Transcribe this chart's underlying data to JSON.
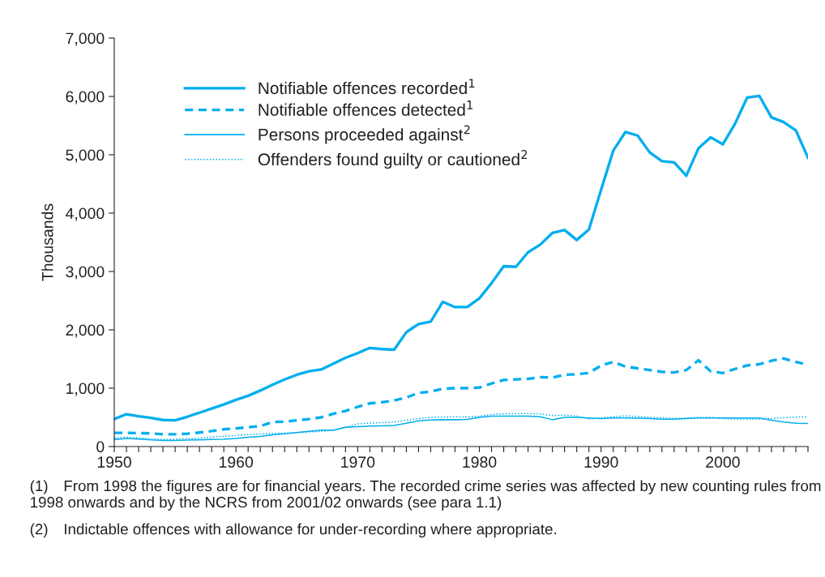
{
  "chart_data": {
    "type": "line",
    "ylabel": "Thousands",
    "x": [
      1950,
      1951,
      1952,
      1953,
      1954,
      1955,
      1956,
      1957,
      1958,
      1959,
      1960,
      1961,
      1962,
      1963,
      1964,
      1965,
      1966,
      1967,
      1968,
      1969,
      1970,
      1971,
      1972,
      1973,
      1974,
      1975,
      1976,
      1977,
      1978,
      1979,
      1980,
      1981,
      1982,
      1983,
      1984,
      1985,
      1986,
      1987,
      1988,
      1989,
      1990,
      1991,
      1992,
      1993,
      1994,
      1995,
      1996,
      1997,
      1998,
      1999,
      2000,
      2001,
      2002,
      2003,
      2004,
      2005,
      2006,
      2007
    ],
    "series": [
      {
        "name": "Notifiable offences recorded$^{1}$",
        "color": "#00aeef",
        "line_style": "solid",
        "values": [
          470,
          555,
          520,
          490,
          455,
          450,
          510,
          580,
          650,
          720,
          800,
          870,
          960,
          1060,
          1150,
          1230,
          1290,
          1320,
          1420,
          1520,
          1600,
          1690,
          1670,
          1660,
          1960,
          2100,
          2140,
          2480,
          2390,
          2390,
          2540,
          2800,
          3090,
          3080,
          3330,
          3460,
          3660,
          3710,
          3540,
          3720,
          4400,
          5070,
          5390,
          5330,
          5040,
          4890,
          4870,
          4640,
          5110,
          5300,
          5180,
          5530,
          5980,
          6010,
          5640,
          5560,
          5420,
          4950
        ]
      },
      {
        "name": "Notifiable offences detected$^{1}$",
        "color": "#00aeef",
        "line_style": "dashed",
        "values": [
          235,
          235,
          230,
          225,
          210,
          210,
          220,
          240,
          265,
          295,
          310,
          330,
          350,
          420,
          425,
          450,
          470,
          500,
          560,
          610,
          680,
          740,
          760,
          790,
          840,
          920,
          940,
          990,
          1000,
          1000,
          1010,
          1080,
          1140,
          1150,
          1160,
          1190,
          1180,
          1230,
          1240,
          1260,
          1390,
          1450,
          1370,
          1340,
          1310,
          1280,
          1270,
          1310,
          1480,
          1290,
          1260,
          1330,
          1390,
          1410,
          1470,
          1510,
          1450,
          1400
        ]
      },
      {
        "name": "Persons proceeded against$^{2}$",
        "color": "#00aeef",
        "line_style": "solid",
        "values": [
          120,
          140,
          130,
          115,
          105,
          105,
          110,
          115,
          120,
          125,
          140,
          160,
          175,
          200,
          220,
          240,
          260,
          280,
          280,
          330,
          340,
          350,
          355,
          360,
          400,
          440,
          455,
          460,
          460,
          465,
          500,
          520,
          520,
          520,
          520,
          510,
          460,
          500,
          500,
          490,
          480,
          490,
          490,
          485,
          480,
          470,
          470,
          480,
          490,
          490,
          490,
          490,
          490,
          490,
          450,
          420,
          400,
          395
        ]
      },
      {
        "name": "Offenders found guilty or cautioned$^{2}$",
        "color": "#00aeef",
        "line_style": "dotted",
        "values": [
          150,
          160,
          150,
          130,
          120,
          125,
          135,
          145,
          160,
          175,
          190,
          205,
          215,
          225,
          230,
          240,
          250,
          260,
          275,
          330,
          390,
          400,
          410,
          420,
          450,
          480,
          500,
          505,
          510,
          505,
          520,
          550,
          560,
          565,
          565,
          560,
          530,
          540,
          520,
          475,
          490,
          510,
          525,
          515,
          500,
          490,
          480,
          490,
          500,
          500,
          480,
          470,
          470,
          470,
          480,
          495,
          505,
          510
        ]
      }
    ],
    "xlim": [
      1950,
      2007
    ],
    "xticks": [
      1950,
      {
        "value": 1951,
        "label": null
      },
      {
        "value": 1952,
        "label": null
      },
      {
        "value": 1953,
        "label": null
      },
      {
        "value": 1954,
        "label": null
      },
      {
        "value": 1955,
        "label": null
      },
      {
        "value": 1956,
        "label": null
      },
      {
        "value": 1957,
        "label": null
      },
      {
        "value": 1958,
        "label": null
      },
      {
        "value": 1959,
        "label": null
      },
      1960,
      {
        "value": 1961,
        "label": null
      },
      {
        "value": 1962,
        "label": null
      },
      {
        "value": 1963,
        "label": null
      },
      {
        "value": 1964,
        "label": null
      },
      {
        "value": 1965,
        "label": null
      },
      {
        "value": 1966,
        "label": null
      },
      {
        "value": 1967,
        "label": null
      },
      {
        "value": 1968,
        "label": null
      },
      {
        "value": 1969,
        "label": null
      },
      1970,
      {
        "value": 1971,
        "label": null
      },
      {
        "value": 1972,
        "label": null
      },
      {
        "value": 1973,
        "label": null
      },
      {
        "value": 1974,
        "label": null
      },
      {
        "value": 1975,
        "label": null
      },
      {
        "value": 1976,
        "label": null
      },
      {
        "value": 1977,
        "label": null
      },
      {
        "value": 1978,
        "label": null
      },
      {
        "value": 1979,
        "label": null
      },
      1980,
      {
        "value": 1981,
        "label": null
      },
      {
        "value": 1982,
        "label": null
      },
      {
        "value": 1983,
        "label": null
      },
      {
        "value": 1984,
        "label": null
      },
      {
        "value": 1985,
        "label": null
      },
      {
        "value": 1986,
        "label": null
      },
      {
        "value": 1987,
        "label": null
      },
      {
        "value": 1988,
        "label": null
      },
      {
        "value": 1989,
        "label": null
      },
      1990,
      {
        "value": 1991,
        "label": null
      },
      {
        "value": 1992,
        "label": null
      },
      {
        "value": 1993,
        "label": null
      },
      {
        "value": 1994,
        "label": null
      },
      {
        "value": 1995,
        "label": null
      },
      {
        "value": 1996,
        "label": null
      },
      {
        "value": 1997,
        "label": null
      },
      {
        "value": 1998,
        "label": null
      },
      {
        "value": 1999,
        "label": null
      },
      2000,
      {
        "value": 2001,
        "label": null
      },
      {
        "value": 2002,
        "label": null
      },
      {
        "value": 2003,
        "label": null
      },
      {
        "value": 2004,
        "label": null
      },
      {
        "value": 2005,
        "label": null
      },
      {
        "value": 2006,
        "label": null
      },
      {
        "value": 2007,
        "label": null
      }
    ],
    "ylim": [
      0,
      7000
    ],
    "yticks": [
      0,
      {
        "value": 1000,
        "label": "1,000"
      },
      {
        "value": 2000,
        "label": "2,000"
      },
      {
        "value": 3000,
        "label": "3,000"
      },
      {
        "value": 4000,
        "label": "4,000"
      },
      {
        "value": 5000,
        "label": "5,000"
      },
      {
        "value": 6000,
        "label": "6,000"
      },
      {
        "value": 7000,
        "label": "7,000"
      }
    ],
    "grid": false,
    "legend": "top left",
    "marker": "none",
    "annotations": [
      "(1) From 1998 the figures are for financial years. The recorded crime series was affected by new counting rules from 1998 onwards and by the NCRS from 2001/02 onwards (see para 1.1)",
      "(2) Indictable offences with allowance for under-recording where appropriate."
    ]
  }
}
